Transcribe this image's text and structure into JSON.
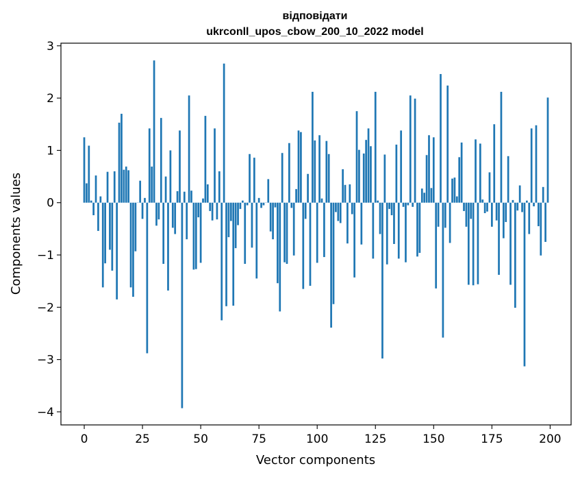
{
  "chart_data": {
    "type": "bar",
    "title": "відповідати",
    "subtitle": "ukrconll_upos_cbow_200_10_2022 model",
    "xlabel": "Vector components",
    "ylabel": "Components values",
    "xlim": [
      -10,
      209
    ],
    "ylim": [
      -4.25,
      3.05
    ],
    "xticks": [
      0,
      25,
      50,
      75,
      100,
      125,
      150,
      175,
      200
    ],
    "xtick_labels": [
      "0",
      "25",
      "50",
      "75",
      "100",
      "125",
      "150",
      "175",
      "200"
    ],
    "yticks": [
      -4,
      -3,
      -2,
      -1,
      0,
      1,
      2,
      3
    ],
    "ytick_labels": [
      "−4",
      "−3",
      "−2",
      "−1",
      "0",
      "1",
      "2",
      "3"
    ],
    "bar_color": "#1f77b4",
    "values": [
      1.25,
      0.37,
      1.09,
      0.04,
      -0.24,
      0.52,
      -0.54,
      0.12,
      -1.62,
      -1.16,
      0.59,
      -0.9,
      -1.3,
      0.6,
      -1.85,
      1.53,
      1.7,
      0.63,
      0.69,
      0.62,
      -1.62,
      -1.8,
      -0.93,
      0.0,
      0.42,
      -0.31,
      0.09,
      -2.88,
      1.42,
      0.69,
      2.72,
      -0.44,
      -0.32,
      1.62,
      -1.17,
      0.5,
      -1.68,
      1.0,
      -0.48,
      -0.6,
      0.22,
      1.38,
      -3.93,
      0.21,
      -0.7,
      2.05,
      0.23,
      -1.28,
      -1.27,
      -0.28,
      -1.15,
      0.08,
      1.66,
      0.35,
      -0.16,
      -0.34,
      1.42,
      -0.32,
      0.6,
      -2.25,
      2.66,
      -1.98,
      -0.66,
      -0.35,
      -1.97,
      -0.87,
      -0.43,
      -0.12,
      0.04,
      -1.17,
      -0.05,
      0.93,
      -0.86,
      0.86,
      -1.45,
      0.09,
      -0.1,
      -0.05,
      0.0,
      0.45,
      -0.55,
      -0.7,
      -0.09,
      -1.54,
      -2.08,
      0.95,
      -1.14,
      -1.17,
      1.14,
      -0.1,
      -1.01,
      0.26,
      1.38,
      1.35,
      -1.65,
      -0.31,
      0.55,
      -1.59,
      2.12,
      1.19,
      -1.15,
      1.29,
      0.08,
      -1.04,
      1.18,
      0.93,
      -2.39,
      -1.94,
      -0.18,
      -0.35,
      -0.39,
      0.64,
      0.34,
      -0.78,
      0.35,
      -0.22,
      -1.43,
      1.75,
      1.01,
      -0.8,
      0.94,
      1.2,
      1.42,
      1.08,
      -1.07,
      2.12,
      0.04,
      -0.6,
      -2.98,
      0.92,
      -1.18,
      -0.12,
      -0.24,
      -0.79,
      1.11,
      -1.07,
      1.38,
      -0.08,
      -1.14,
      -0.05,
      2.05,
      -0.08,
      1.99,
      -1.03,
      -0.96,
      0.27,
      0.19,
      0.91,
      1.29,
      0.28,
      1.25,
      -1.64,
      -0.46,
      2.46,
      -2.58,
      -0.48,
      2.24,
      -0.77,
      0.46,
      0.48,
      0.12,
      0.87,
      1.15,
      -0.16,
      -0.46,
      -1.57,
      -0.31,
      -1.58,
      1.21,
      -1.56,
      1.13,
      0.06,
      -0.2,
      -0.17,
      0.58,
      -0.46,
      1.5,
      -0.34,
      -1.38,
      2.12,
      -0.68,
      -0.37,
      0.89,
      -1.57,
      0.05,
      -2.01,
      -0.15,
      0.33,
      -0.18,
      -3.13,
      0.04,
      -0.6,
      1.42,
      -0.07,
      1.48,
      -0.45,
      -1.01,
      0.3,
      -0.75,
      2.01
    ]
  }
}
